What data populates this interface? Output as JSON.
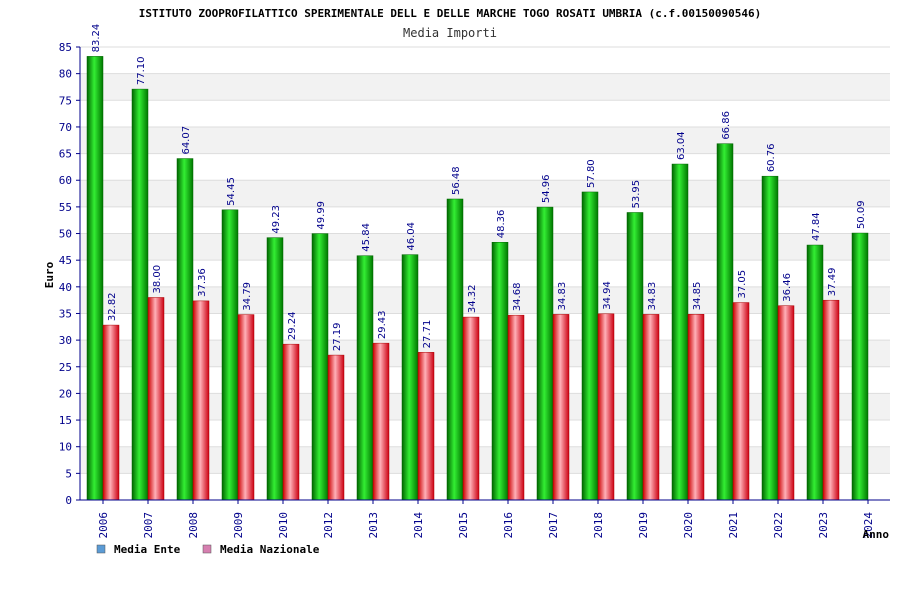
{
  "chart_data": {
    "type": "bar",
    "title": "ISTITUTO ZOOPROFILATTICO SPERIMENTALE DELL E DELLE MARCHE TOGO ROSATI UMBRIA (c.f.00150090546)",
    "subtitle": "Media Importi",
    "xlabel": "Anno",
    "ylabel": "Euro",
    "ylim": [
      0,
      85
    ],
    "yticks": [
      0,
      5,
      10,
      15,
      20,
      25,
      30,
      35,
      40,
      45,
      50,
      55,
      60,
      65,
      70,
      75,
      80,
      85
    ],
    "grid": true,
    "legend_position": "bottom-left",
    "categories": [
      "2006",
      "2007",
      "2008",
      "2009",
      "2010",
      "2012",
      "2013",
      "2014",
      "2015",
      "2016",
      "2017",
      "2018",
      "2019",
      "2020",
      "2021",
      "2022",
      "2023",
      "2024"
    ],
    "series": [
      {
        "name": "Media Ente",
        "color": "#00cc00",
        "legend_color": "#5b9bd5",
        "values": [
          83.24,
          77.1,
          64.07,
          54.45,
          49.23,
          49.99,
          45.84,
          46.04,
          56.48,
          48.36,
          54.96,
          57.8,
          53.95,
          63.04,
          66.86,
          60.76,
          47.84,
          50.09
        ],
        "labels": [
          "83.24",
          "77.10",
          "64.07",
          "54.45",
          "49.23",
          "49.99",
          "45.84",
          "46.04",
          "56.48",
          "48.36",
          "54.96",
          "57.80",
          "53.95",
          "63.04",
          "66.86",
          "60.76",
          "47.84",
          "50.09"
        ]
      },
      {
        "name": "Media Nazionale",
        "color": "#ee2233",
        "legend_color": "#d67fb0",
        "values": [
          32.82,
          38.0,
          37.36,
          34.79,
          29.24,
          27.19,
          29.43,
          27.71,
          34.32,
          34.68,
          34.83,
          34.94,
          34.83,
          34.85,
          37.05,
          36.46,
          37.49,
          null
        ],
        "labels": [
          "32.82",
          "38.00",
          "37.36",
          "34.79",
          "29.24",
          "27.19",
          "29.43",
          "27.71",
          "34.32",
          "34.68",
          "34.83",
          "34.94",
          "34.83",
          "34.85",
          "37.05",
          "36.46",
          "37.49",
          ""
        ]
      }
    ]
  }
}
